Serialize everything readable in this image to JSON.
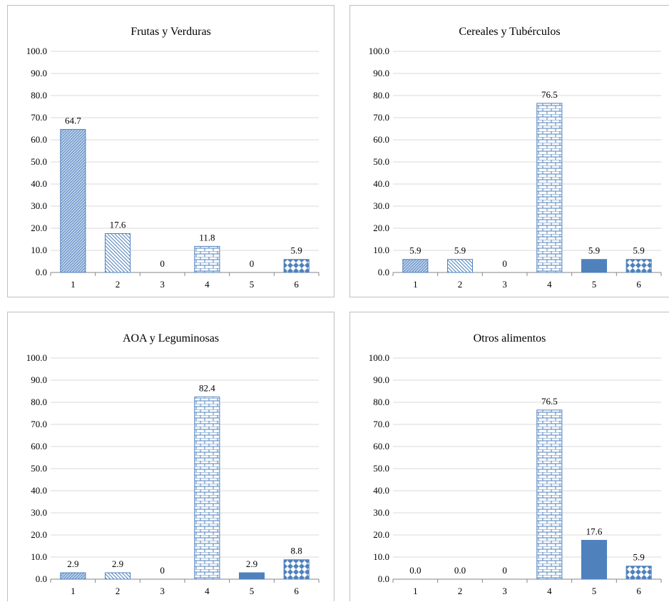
{
  "chart_data": [
    {
      "type": "bar",
      "title": "Frutas y Verduras",
      "categories": [
        "1",
        "2",
        "3",
        "4",
        "5",
        "6"
      ],
      "values": [
        64.7,
        17.6,
        0,
        11.8,
        0,
        5.9
      ],
      "labels": [
        "64.7",
        "17.6",
        "0",
        "11.8",
        "0",
        "5.9"
      ],
      "ylim": [
        0,
        100
      ],
      "yticks": [
        "0.0",
        "10.0",
        "20.0",
        "30.0",
        "40.0",
        "50.0",
        "60.0",
        "70.0",
        "80.0",
        "90.0",
        "100.0"
      ],
      "grid": true
    },
    {
      "type": "bar",
      "title": "Cereales y Tubérculos",
      "categories": [
        "1",
        "2",
        "3",
        "4",
        "5",
        "6"
      ],
      "values": [
        5.9,
        5.9,
        0,
        76.5,
        5.9,
        5.9
      ],
      "labels": [
        "5.9",
        "5.9",
        "0",
        "76.5",
        "5.9",
        "5.9"
      ],
      "ylim": [
        0,
        100
      ],
      "yticks": [
        "0.0",
        "10.0",
        "20.0",
        "30.0",
        "40.0",
        "50.0",
        "60.0",
        "70.0",
        "80.0",
        "90.0",
        "100.0"
      ],
      "grid": true
    },
    {
      "type": "bar",
      "title": "AOA y Leguminosas",
      "categories": [
        "1",
        "2",
        "3",
        "4",
        "5",
        "6"
      ],
      "values": [
        2.9,
        2.9,
        0,
        82.4,
        2.9,
        8.8
      ],
      "labels": [
        "2.9",
        "2.9",
        "0",
        "82.4",
        "2.9",
        "8.8"
      ],
      "ylim": [
        0,
        100
      ],
      "yticks": [
        "0.0",
        "10.0",
        "20.0",
        "30.0",
        "40.0",
        "50.0",
        "60.0",
        "70.0",
        "80.0",
        "90.0",
        "100.0"
      ],
      "grid": true
    },
    {
      "type": "bar",
      "title": "Otros alimentos",
      "categories": [
        "1",
        "2",
        "3",
        "4",
        "5",
        "6"
      ],
      "values": [
        0.0,
        0.0,
        0,
        76.5,
        17.6,
        5.9
      ],
      "labels": [
        "0.0",
        "0.0",
        "0",
        "76.5",
        "17.6",
        "5.9"
      ],
      "ylim": [
        0,
        100
      ],
      "yticks": [
        "0.0",
        "10.0",
        "20.0",
        "30.0",
        "40.0",
        "50.0",
        "60.0",
        "70.0",
        "80.0",
        "90.0",
        "100.0"
      ],
      "grid": true
    }
  ],
  "colors": {
    "bar_fill": "#bcd0ea",
    "bar_stroke": "#4f81bd",
    "bar_solid": "#4f81bd",
    "pattern_line": "#4f81bd",
    "grid": "#d9d9d9",
    "axis": "#868686"
  },
  "bar_patterns": [
    "dense-diagonal",
    "wide-diagonal",
    "none",
    "brick",
    "solid",
    "diamond"
  ]
}
